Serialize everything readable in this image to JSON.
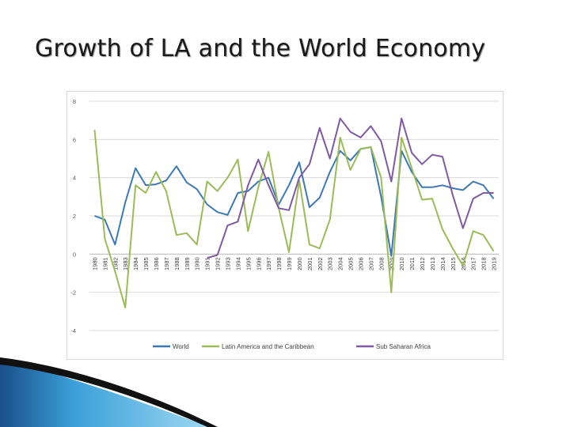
{
  "slide": {
    "title": "Growth of LA and the World Economy"
  },
  "chart_data": {
    "type": "line",
    "title": "",
    "xlabel": "",
    "ylabel": "",
    "ylim": [
      -4,
      8
    ],
    "yticks": [
      8,
      6,
      4,
      2,
      0,
      -2,
      -4
    ],
    "grid": true,
    "legend": "bottom",
    "x": [
      "1980",
      "1981",
      "1982",
      "1983",
      "1984",
      "1985",
      "1986",
      "1987",
      "1988",
      "1989",
      "1990",
      "1991",
      "1992",
      "1993",
      "1994",
      "1995",
      "1996",
      "1997",
      "1998",
      "1999",
      "2000",
      "2001",
      "2002",
      "2003",
      "2004",
      "2005",
      "2006",
      "2007",
      "2008",
      "2009",
      "2010",
      "2011",
      "2012",
      "2013",
      "2014",
      "2015",
      "2016",
      "2017",
      "2018",
      "2019"
    ],
    "series": [
      {
        "name": "World",
        "color": "#3e78b2",
        "values": [
          2.0,
          1.8,
          0.5,
          2.7,
          4.5,
          3.6,
          3.65,
          3.85,
          4.6,
          3.75,
          3.4,
          2.6,
          2.2,
          2.05,
          3.2,
          3.3,
          3.8,
          4.0,
          2.6,
          3.6,
          4.8,
          2.45,
          2.95,
          4.3,
          5.4,
          4.9,
          5.5,
          5.6,
          3.0,
          -0.1,
          5.4,
          4.3,
          3.5,
          3.5,
          3.6,
          3.45,
          3.35,
          3.8,
          3.6,
          2.9
        ]
      },
      {
        "name": "Latin America and the Caribbean",
        "color": "#9bbb59",
        "values": [
          6.5,
          0.8,
          -0.9,
          -2.8,
          3.6,
          3.2,
          4.3,
          3.3,
          1.0,
          1.1,
          0.5,
          3.8,
          3.3,
          4.0,
          4.95,
          1.2,
          3.5,
          5.35,
          2.4,
          0.1,
          3.85,
          0.5,
          0.3,
          1.8,
          6.1,
          4.4,
          5.5,
          5.6,
          4.0,
          -2.0,
          6.1,
          4.5,
          2.85,
          2.9,
          1.3,
          0.3,
          -0.6,
          1.2,
          1.0,
          0.15
        ]
      },
      {
        "name": "Sub Saharan Africa",
        "color": "#7e5aa2",
        "values": [
          null,
          null,
          null,
          null,
          null,
          null,
          null,
          null,
          null,
          null,
          null,
          -0.2,
          -0.05,
          1.5,
          1.7,
          3.6,
          4.95,
          3.6,
          2.4,
          2.3,
          4.0,
          4.7,
          6.6,
          5.0,
          7.1,
          6.4,
          6.1,
          6.7,
          5.9,
          3.8,
          7.1,
          5.3,
          4.7,
          5.2,
          5.1,
          3.1,
          1.35,
          2.9,
          3.2,
          3.2
        ]
      }
    ]
  }
}
